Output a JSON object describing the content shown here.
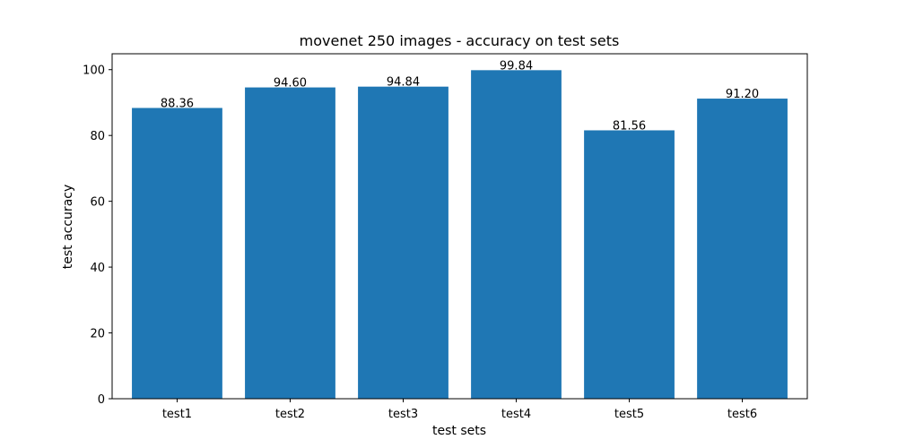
{
  "chart_data": {
    "type": "bar",
    "title": "movenet 250 images -  accuracy on test sets",
    "xlabel": "test sets",
    "ylabel": "test accuracy",
    "categories": [
      "test1",
      "test2",
      "test3",
      "test4",
      "test5",
      "test6"
    ],
    "values": [
      88.36,
      94.6,
      94.84,
      99.84,
      81.56,
      91.2
    ],
    "data_labels": [
      "88.36",
      "94.60",
      "94.84",
      "99.84",
      "81.56",
      "91.20"
    ],
    "ylim": [
      0,
      104.83
    ],
    "yticks": [
      0,
      20,
      40,
      60,
      80,
      100
    ],
    "grid": false,
    "legend": "none",
    "bar_color": "#1f77b4"
  }
}
